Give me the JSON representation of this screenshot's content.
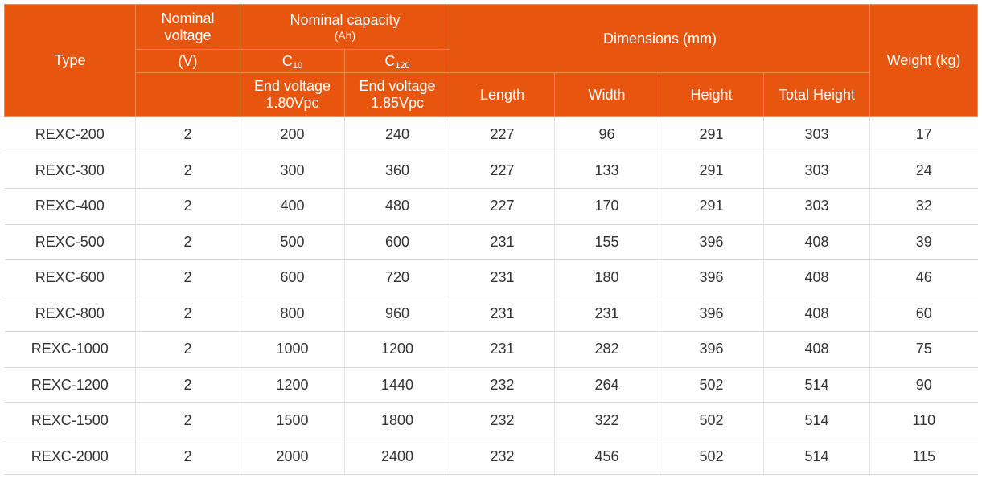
{
  "headers": {
    "type": "Type",
    "nominal_voltage_line1": "Nominal",
    "nominal_voltage_line2": "voltage",
    "nominal_voltage_unit": "(V)",
    "nominal_capacity": "Nominal capacity",
    "nominal_capacity_unit": "(Ah)",
    "c10_base": "C",
    "c10_sub": "10",
    "c120_base": "C",
    "c120_sub": "120",
    "c10_end_line1": "End voltage",
    "c10_end_line2": "1.80Vpc",
    "c120_end_line1": "End voltage",
    "c120_end_line2": "1.85Vpc",
    "dimensions": "Dimensions (mm)",
    "length": "Length",
    "width": "Width",
    "height": "Height",
    "total_height": "Total Height",
    "weight": "Weight (kg)"
  },
  "rows": [
    [
      "REXC-200",
      "2",
      "200",
      "240",
      "227",
      "96",
      "291",
      "303",
      "17"
    ],
    [
      "REXC-300",
      "2",
      "300",
      "360",
      "227",
      "133",
      "291",
      "303",
      "24"
    ],
    [
      "REXC-400",
      "2",
      "400",
      "480",
      "227",
      "170",
      "291",
      "303",
      "32"
    ],
    [
      "REXC-500",
      "2",
      "500",
      "600",
      "231",
      "155",
      "396",
      "408",
      "39"
    ],
    [
      "REXC-600",
      "2",
      "600",
      "720",
      "231",
      "180",
      "396",
      "408",
      "46"
    ],
    [
      "REXC-800",
      "2",
      "800",
      "960",
      "231",
      "231",
      "396",
      "408",
      "60"
    ],
    [
      "REXC-1000",
      "2",
      "1000",
      "1200",
      "231",
      "282",
      "396",
      "408",
      "75"
    ],
    [
      "REXC-1200",
      "2",
      "1200",
      "1440",
      "232",
      "264",
      "502",
      "514",
      "90"
    ],
    [
      "REXC-1500",
      "2",
      "1500",
      "1800",
      "232",
      "322",
      "502",
      "514",
      "110"
    ],
    [
      "REXC-2000",
      "2",
      "2000",
      "2400",
      "232",
      "456",
      "502",
      "514",
      "115"
    ]
  ],
  "colors": {
    "header_bg": "#e8550f",
    "header_text": "#ffffff",
    "body_text": "#333333"
  }
}
